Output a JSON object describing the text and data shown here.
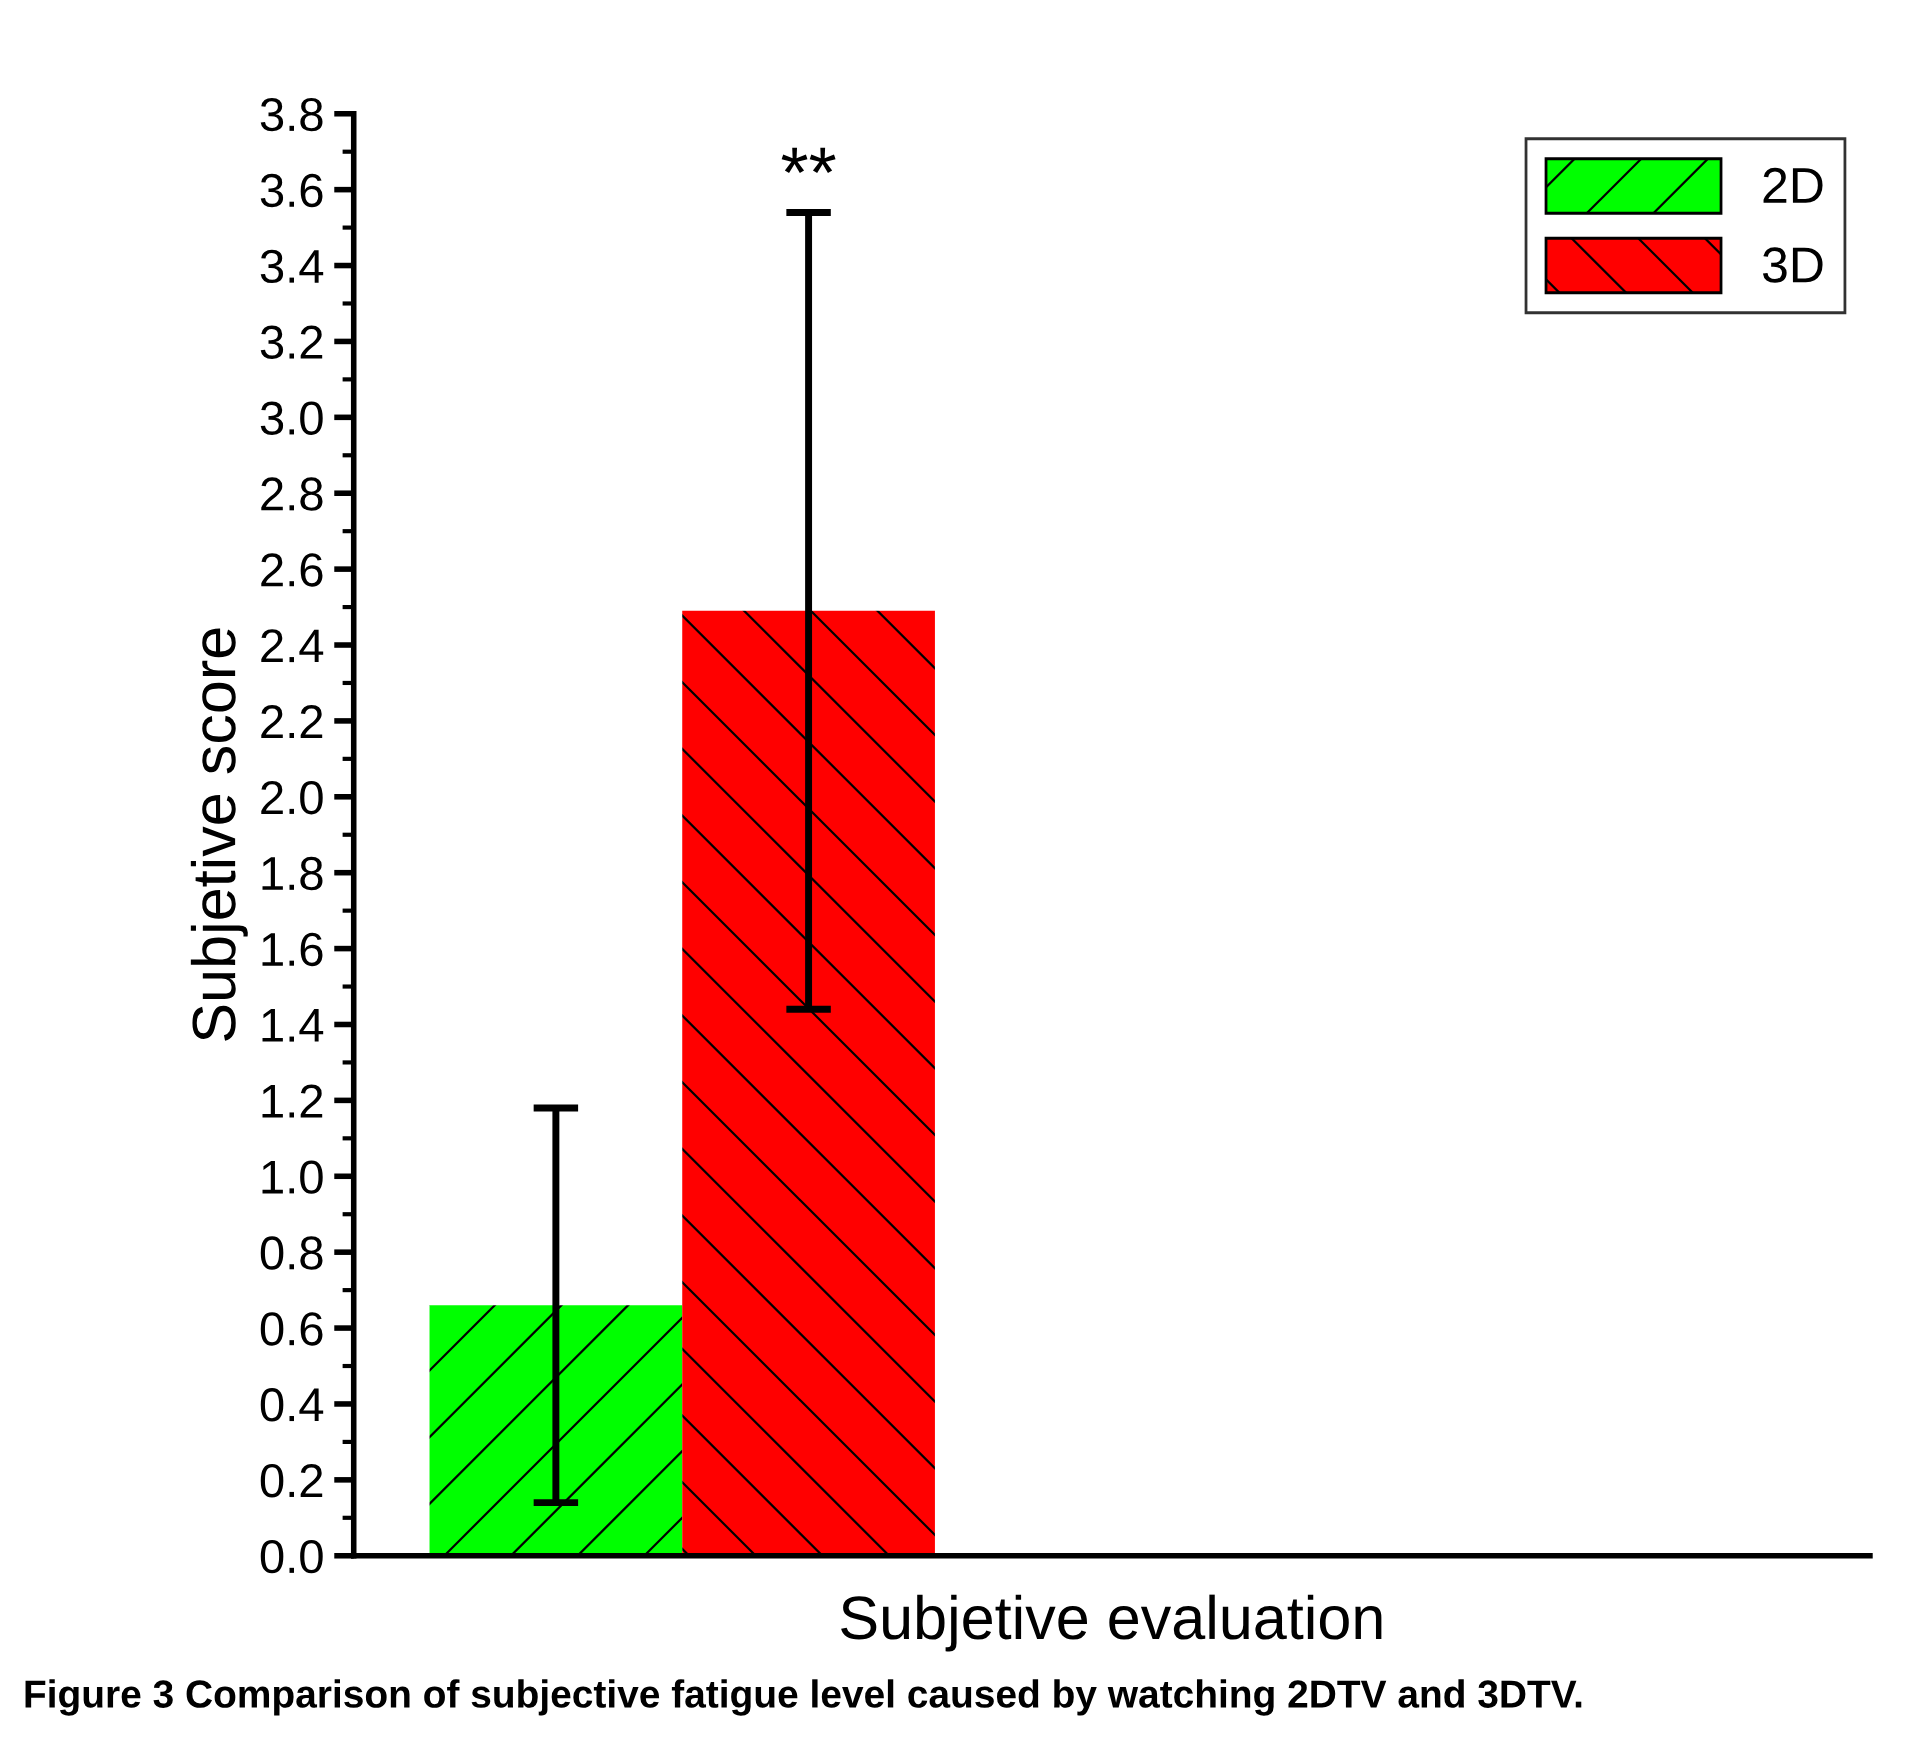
{
  "chart_data": {
    "type": "bar",
    "categories": [
      null
    ],
    "xlabel": "Subjetive evaluation",
    "ylabel": "Subjetive score",
    "series": [
      {
        "name": "2D",
        "color": "#00ff00",
        "values": [
          0.66
        ],
        "errors": [
          0.52
        ]
      },
      {
        "name": "3D",
        "color": "#ff0000",
        "values": [
          2.49
        ],
        "errors": [
          1.05
        ]
      }
    ],
    "ylim": [
      0,
      3.8
    ],
    "yticks": [
      {
        "value": 0,
        "label": "0.0"
      },
      {
        "value": 0.2,
        "label": "0.2"
      },
      {
        "value": 0.4,
        "label": "0.4"
      },
      {
        "value": 0.6,
        "label": "0.6"
      },
      {
        "value": 0.8,
        "label": "0.8"
      },
      {
        "value": 1.0,
        "label": "1.0"
      },
      {
        "value": 1.2,
        "label": "1.2"
      },
      {
        "value": 1.4,
        "label": "1.4"
      },
      {
        "value": 1.6,
        "label": "1.6"
      },
      {
        "value": 1.8,
        "label": "1.8"
      },
      {
        "value": 2.0,
        "label": "2.0"
      },
      {
        "value": 2.2,
        "label": "2.2"
      },
      {
        "value": 2.4,
        "label": "2.4"
      },
      {
        "value": 2.6,
        "label": "2.6"
      },
      {
        "value": 2.8,
        "label": "2.8"
      },
      {
        "value": 3.0,
        "label": "3.0"
      },
      {
        "value": 3.2,
        "label": "3.2"
      },
      {
        "value": 3.4,
        "label": "3.4"
      },
      {
        "value": 3.6,
        "label": "3.6"
      },
      {
        "value": 3.8,
        "label": "3.8"
      }
    ],
    "annotations": [
      "**",
      "Figure 3 Comparison of subjective fatigue level caused by watching 2DTV and 3DTV."
    ],
    "legend": "top right",
    "grid": false
  }
}
